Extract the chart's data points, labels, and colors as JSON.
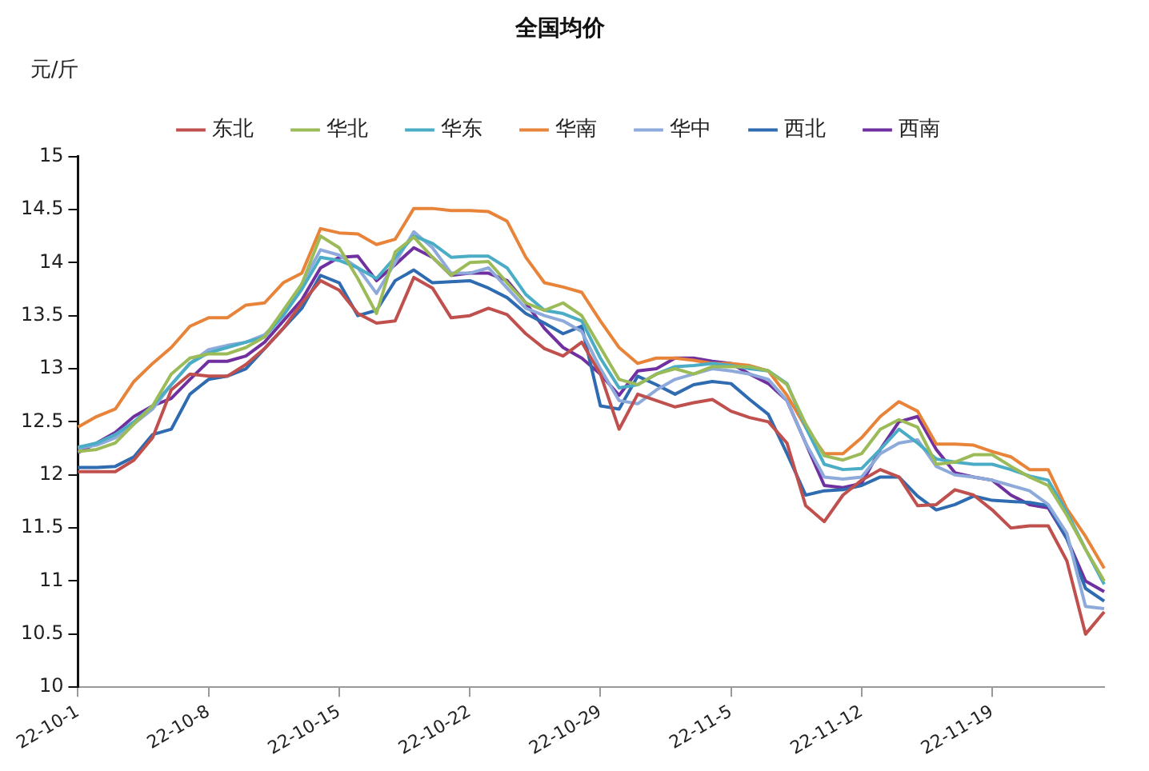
{
  "chart_data": {
    "type": "line",
    "title": "全国均价",
    "ylabel": "元/斤",
    "categories": [
      "22-10-1",
      null,
      null,
      null,
      null,
      null,
      null,
      "22-10-8",
      null,
      null,
      null,
      null,
      null,
      null,
      "22-10-15",
      null,
      null,
      null,
      null,
      null,
      null,
      "22-10-22",
      null,
      null,
      null,
      null,
      null,
      null,
      "22-10-29",
      null,
      null,
      null,
      null,
      null,
      null,
      "22-11-5",
      null,
      null,
      null,
      null,
      null,
      null,
      "22-11-12",
      null,
      null,
      null,
      null,
      null,
      null,
      "22-11-19",
      null,
      null,
      null,
      null,
      null,
      null
    ],
    "series": [
      {
        "name": "东北",
        "color": "#c0504d",
        "values": [
          12.03,
          12.03,
          12.03,
          12.14,
          12.35,
          12.8,
          12.95,
          12.93,
          12.93,
          13.04,
          13.19,
          13.38,
          13.62,
          13.83,
          13.74,
          13.52,
          13.43,
          13.45,
          13.86,
          13.76,
          13.48,
          13.5,
          13.57,
          13.51,
          13.33,
          13.19,
          13.12,
          13.25,
          12.95,
          12.43,
          12.76,
          12.7,
          12.64,
          12.68,
          12.71,
          12.6,
          12.54,
          12.5,
          12.3,
          11.71,
          11.56,
          11.81,
          11.95,
          12.05,
          11.98,
          11.71,
          11.72,
          11.86,
          11.81,
          11.67,
          11.5,
          11.52,
          11.52,
          11.19,
          10.5,
          10.71
        ]
      },
      {
        "name": "华北",
        "color": "#9bbb59",
        "values": [
          12.22,
          12.24,
          12.3,
          12.48,
          12.65,
          12.95,
          13.1,
          13.14,
          13.14,
          13.2,
          13.3,
          13.55,
          13.8,
          14.25,
          14.14,
          13.85,
          13.52,
          14.1,
          14.24,
          14.05,
          13.88,
          14.0,
          14.01,
          13.81,
          13.62,
          13.55,
          13.62,
          13.5,
          13.2,
          12.9,
          12.85,
          12.95,
          13.0,
          12.95,
          13.02,
          13.02,
          13.02,
          12.98,
          12.85,
          12.48,
          12.18,
          12.14,
          12.2,
          12.43,
          12.52,
          12.45,
          12.1,
          12.12,
          12.19,
          12.19,
          12.08,
          11.98,
          11.9,
          11.62,
          11.3,
          11.0
        ]
      },
      {
        "name": "华东",
        "color": "#4bacc6",
        "values": [
          12.26,
          12.3,
          12.38,
          12.5,
          12.65,
          12.85,
          13.05,
          13.15,
          13.2,
          13.25,
          13.3,
          13.5,
          13.75,
          14.05,
          14.02,
          13.95,
          13.85,
          14.05,
          14.25,
          14.18,
          14.05,
          14.06,
          14.06,
          13.95,
          13.7,
          13.55,
          13.52,
          13.45,
          13.1,
          12.82,
          12.85,
          12.95,
          13.02,
          13.03,
          13.05,
          13.03,
          13.0,
          12.98,
          12.86,
          12.45,
          12.1,
          12.05,
          12.06,
          12.24,
          12.43,
          12.3,
          12.15,
          12.12,
          12.1,
          12.1,
          12.05,
          11.99,
          11.95,
          11.65,
          11.3,
          10.97
        ]
      },
      {
        "name": "华南",
        "color": "#e8843a",
        "values": [
          12.45,
          12.55,
          12.62,
          12.88,
          13.05,
          13.2,
          13.4,
          13.48,
          13.48,
          13.6,
          13.62,
          13.81,
          13.9,
          14.32,
          14.28,
          14.27,
          14.17,
          14.22,
          14.51,
          14.51,
          14.49,
          14.49,
          14.48,
          14.39,
          14.05,
          13.81,
          13.77,
          13.72,
          13.45,
          13.2,
          13.05,
          13.1,
          13.1,
          13.08,
          13.05,
          13.05,
          13.03,
          12.98,
          12.75,
          12.45,
          12.2,
          12.2,
          12.35,
          12.55,
          12.69,
          12.6,
          12.29,
          12.29,
          12.28,
          12.22,
          12.17,
          12.05,
          12.05,
          11.68,
          11.42,
          11.12
        ]
      },
      {
        "name": "华中",
        "color": "#8eaadb",
        "values": [
          12.25,
          12.28,
          12.35,
          12.48,
          12.62,
          12.85,
          13.05,
          13.18,
          13.22,
          13.25,
          13.32,
          13.5,
          13.8,
          14.12,
          14.07,
          13.95,
          13.71,
          14.0,
          14.29,
          14.14,
          13.9,
          13.9,
          13.95,
          13.76,
          13.57,
          13.5,
          13.45,
          13.35,
          13.0,
          12.7,
          12.67,
          12.8,
          12.9,
          12.95,
          13.0,
          12.98,
          12.95,
          12.9,
          12.7,
          12.3,
          11.98,
          11.96,
          11.98,
          12.2,
          12.3,
          12.33,
          12.08,
          12.0,
          11.98,
          11.95,
          11.9,
          11.85,
          11.72,
          11.45,
          10.76,
          10.74
        ]
      },
      {
        "name": "西北",
        "color": "#2e6bb0",
        "values": [
          12.07,
          12.07,
          12.08,
          12.17,
          12.38,
          12.43,
          12.76,
          12.9,
          12.93,
          13.0,
          13.19,
          13.38,
          13.57,
          13.88,
          13.81,
          13.5,
          13.55,
          13.83,
          13.93,
          13.81,
          13.82,
          13.83,
          13.76,
          13.67,
          13.52,
          13.43,
          13.33,
          13.4,
          12.65,
          12.62,
          12.93,
          12.85,
          12.76,
          12.85,
          12.88,
          12.86,
          12.71,
          12.57,
          12.2,
          11.81,
          11.85,
          11.86,
          11.9,
          11.98,
          11.98,
          11.8,
          11.67,
          11.72,
          11.8,
          11.76,
          11.75,
          11.74,
          11.71,
          11.4,
          10.93,
          10.81
        ]
      },
      {
        "name": "西南",
        "color": "#7030a0",
        "values": [
          12.21,
          12.3,
          12.4,
          12.55,
          12.65,
          12.72,
          12.9,
          13.07,
          13.07,
          13.12,
          13.25,
          13.45,
          13.65,
          13.95,
          14.05,
          14.06,
          13.83,
          13.98,
          14.14,
          14.05,
          13.88,
          13.9,
          13.9,
          13.83,
          13.62,
          13.38,
          13.2,
          13.1,
          12.95,
          12.75,
          12.98,
          13.0,
          13.1,
          13.1,
          13.07,
          13.05,
          12.95,
          12.86,
          12.7,
          12.3,
          11.9,
          11.88,
          11.92,
          12.24,
          12.5,
          12.55,
          12.24,
          12.02,
          11.98,
          11.95,
          11.81,
          11.72,
          11.69,
          11.4,
          11.0,
          10.9
        ]
      }
    ],
    "ylim": [
      10,
      15
    ],
    "yticks": [
      10,
      10.5,
      11,
      11.5,
      12,
      12.5,
      13,
      13.5,
      14,
      14.5,
      15
    ],
    "legend": "top"
  }
}
